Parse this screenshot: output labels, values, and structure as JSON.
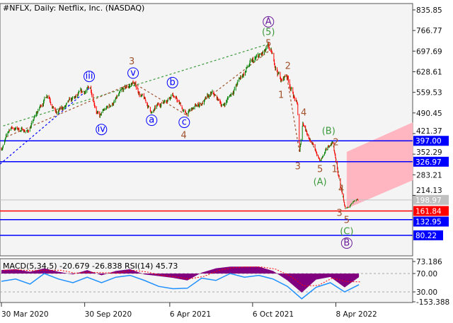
{
  "title": "#NFLX, Daily:  Netflix, Inc. (NASDAQ)",
  "indicator_label": "MACD(5,34,5) -20.679 -26.838 RSI(14) 45.73",
  "colors": {
    "background": "#f4f4f4",
    "bull": "#008000",
    "bear": "#ff0000",
    "level_blue": "#0000ff",
    "level_red": "#ff0000",
    "current_price": "#c0c0c0",
    "channel": "#ffb6c1",
    "rsi": "#1e90ff",
    "macd_hist": "#800080",
    "macd_signal": "#ff0000",
    "wave_blue": "#0000ff",
    "wave_brown": "#a0522d",
    "wave_green": "#3c9a3c",
    "wave_purple": "#6a1b9a"
  },
  "chart_data": {
    "type": "candlestick",
    "symbol": "#NFLX",
    "timeframe": "Daily",
    "price_axis": {
      "ticks": [
        "835.85",
        "766.77",
        "697.69",
        "628.61",
        "559.53",
        "490.45",
        "421.37",
        "352.29",
        "283.21",
        "214.13"
      ],
      "ylim": [
        80.22,
        835.85
      ]
    },
    "time_axis": {
      "ticks": [
        {
          "label": "30 Mar 2020",
          "date": "2020-03-30"
        },
        {
          "label": "30 Sep 2020",
          "date": "2020-09-30"
        },
        {
          "label": "6 Apr 2021",
          "date": "2021-04-06"
        },
        {
          "label": "6 Oct 2021",
          "date": "2021-10-06"
        },
        {
          "label": "8 Apr 2022",
          "date": "2022-04-08"
        }
      ]
    },
    "price_path": [
      {
        "date": "2020-03-30",
        "close": 371
      },
      {
        "date": "2020-04-19",
        "close": 442
      },
      {
        "date": "2020-05-28",
        "close": 430
      },
      {
        "date": "2020-07-11",
        "close": 561
      },
      {
        "date": "2020-07-30",
        "close": 490
      },
      {
        "date": "2020-10-13",
        "close": 573
      },
      {
        "date": "2020-11-01",
        "close": 478
      },
      {
        "date": "2021-01-15",
        "close": 592
      },
      {
        "date": "2021-02-26",
        "close": 490
      },
      {
        "date": "2021-04-11",
        "close": 561
      },
      {
        "date": "2021-05-11",
        "close": 485
      },
      {
        "date": "2021-07-09",
        "close": 549
      },
      {
        "date": "2021-08-02",
        "close": 514
      },
      {
        "date": "2021-09-25",
        "close": 644
      },
      {
        "date": "2021-11-11",
        "close": 698
      },
      {
        "date": "2021-12-09",
        "close": 597
      },
      {
        "date": "2021-12-20",
        "close": 620
      },
      {
        "date": "2022-01-13",
        "close": 514
      },
      {
        "date": "2022-01-18",
        "close": 355
      },
      {
        "date": "2022-01-25",
        "close": 459
      },
      {
        "date": "2022-03-04",
        "close": 329
      },
      {
        "date": "2022-04-01",
        "close": 395
      },
      {
        "date": "2022-04-10",
        "close": 312
      },
      {
        "date": "2022-04-17",
        "close": 248
      },
      {
        "date": "2022-04-29",
        "close": 168
      },
      {
        "date": "2022-05-29",
        "close": 198.97
      }
    ],
    "levels": [
      {
        "price": 397.0,
        "label": "397.00",
        "color": "level_blue"
      },
      {
        "price": 326.97,
        "label": "326.97",
        "color": "level_blue"
      },
      {
        "price": 198.97,
        "label": "198.97",
        "color": "current_price"
      },
      {
        "price": 161.84,
        "label": "161.84",
        "color": "level_red"
      },
      {
        "price": 132.95,
        "label": "132.95",
        "color": "level_blue"
      },
      {
        "price": 80.22,
        "label": "80.22",
        "color": "level_blue"
      }
    ],
    "target_channel": {
      "start": "2022-05-02",
      "end": "2022-09-25",
      "upper": [
        360,
        459
      ],
      "lower": [
        170,
        265
      ]
    },
    "wave_lines": [
      {
        "from": [
          "2020-04-03",
          447
        ],
        "to": [
          "2021-11-11",
          722
        ],
        "color": "wave_green"
      },
      {
        "from": [
          "2020-03-27",
          319
        ],
        "to": [
          "2020-10-10",
          573
        ],
        "color": "wave_blue"
      },
      {
        "from": [
          "2020-04-10",
          410
        ],
        "to": [
          "2021-01-15",
          592
        ],
        "color": "wave_brown"
      },
      {
        "from": [
          "2021-01-15",
          592
        ],
        "to": [
          "2021-05-11",
          485
        ],
        "color": "wave_brown"
      },
      {
        "from": [
          "2021-05-11",
          485
        ],
        "to": [
          "2021-11-11",
          698
        ],
        "color": "wave_brown"
      },
      {
        "from": [
          "2021-12-20",
          620
        ],
        "to": [
          "2022-01-18",
          355
        ],
        "color": "wave_brown"
      },
      {
        "from": [
          "2022-01-25",
          459
        ],
        "to": [
          "2022-03-04",
          329
        ],
        "color": "wave_brown"
      },
      {
        "from": [
          "2022-03-04",
          329
        ],
        "to": [
          "2022-04-01",
          395
        ],
        "color": "wave_green"
      },
      {
        "from": [
          "2022-04-01",
          395
        ],
        "to": [
          "2022-04-29",
          168
        ],
        "color": "wave_green"
      }
    ],
    "wave_labels": [
      {
        "text": "iii",
        "date": "2020-10-10",
        "price": 613,
        "color": "wave_blue",
        "circle": true
      },
      {
        "text": "iv",
        "date": "2020-11-06",
        "price": 435,
        "color": "wave_blue",
        "circle": true
      },
      {
        "text": "v",
        "date": "2021-01-15",
        "price": 630,
        "color": "wave_blue",
        "circle": true
      },
      {
        "text": "3",
        "date": "2021-01-12",
        "price": 662,
        "color": "wave_brown",
        "circle": false
      },
      {
        "text": "a",
        "date": "2021-02-25",
        "price": 466,
        "color": "wave_blue",
        "circle": true
      },
      {
        "text": "b",
        "date": "2021-04-12",
        "price": 592,
        "color": "wave_blue",
        "circle": true
      },
      {
        "text": "c",
        "date": "2021-05-08",
        "price": 459,
        "color": "wave_blue",
        "circle": true
      },
      {
        "text": "4",
        "date": "2021-05-07",
        "price": 414,
        "color": "wave_brown",
        "circle": false
      },
      {
        "text": "5",
        "date": "2021-11-10",
        "price": 722,
        "color": "wave_brown",
        "circle": false
      },
      {
        "text": "(5)",
        "date": "2021-11-10",
        "price": 760,
        "color": "wave_green",
        "circle": false
      },
      {
        "text": "A",
        "date": "2021-11-10",
        "price": 796,
        "color": "wave_purple",
        "circle": true
      },
      {
        "text": "1",
        "date": "2021-12-08",
        "price": 549,
        "color": "wave_brown",
        "circle": false
      },
      {
        "text": "2",
        "date": "2021-12-23",
        "price": 646,
        "color": "wave_brown",
        "circle": false
      },
      {
        "text": "3",
        "date": "2022-01-14",
        "price": 310,
        "color": "wave_brown",
        "circle": false
      },
      {
        "text": "4",
        "date": "2022-01-27",
        "price": 490,
        "color": "wave_brown",
        "circle": false
      },
      {
        "text": "5",
        "date": "2022-03-04",
        "price": 300,
        "color": "wave_brown",
        "circle": false
      },
      {
        "text": "(A)",
        "date": "2022-03-04",
        "price": 258,
        "color": "wave_green",
        "circle": false
      },
      {
        "text": "(B)",
        "date": "2022-03-23",
        "price": 428,
        "color": "wave_green",
        "circle": false
      },
      {
        "text": "2",
        "date": "2022-04-08",
        "price": 395,
        "color": "wave_brown",
        "circle": false
      },
      {
        "text": "1",
        "date": "2022-04-05",
        "price": 300,
        "color": "wave_brown",
        "circle": false
      },
      {
        "text": "4",
        "date": "2022-04-20",
        "price": 234,
        "color": "wave_brown",
        "circle": false
      },
      {
        "text": "3",
        "date": "2022-04-16",
        "price": 154,
        "color": "wave_brown",
        "circle": false
      },
      {
        "text": "5",
        "date": "2022-05-02",
        "price": 130,
        "color": "wave_brown",
        "circle": false
      },
      {
        "text": "(C)",
        "date": "2022-05-02",
        "price": 104,
        "color": "wave_green",
        "circle": false
      },
      {
        "text": "B",
        "date": "2022-05-02",
        "price": 66,
        "color": "wave_purple",
        "circle": true
      }
    ],
    "indicator": {
      "axis_ticks": [
        "73.186",
        "70.00",
        "30.00",
        "-153.388"
      ],
      "rsi_levels": [
        70,
        30
      ],
      "range": [
        "2020-03-30",
        "2022-05-29"
      ],
      "rsi": [
        53,
        58,
        47,
        70,
        58,
        50,
        62,
        50,
        62,
        66,
        55,
        42,
        37,
        38,
        60,
        55,
        70,
        62,
        66,
        58,
        42,
        15,
        40,
        50,
        30,
        45.73
      ],
      "macd": [
        20,
        25,
        10,
        30,
        10,
        -5,
        20,
        -10,
        15,
        25,
        -5,
        -15,
        -25,
        -40,
        5,
        30,
        40,
        40,
        40,
        15,
        -40,
        -110,
        -35,
        -20,
        -80,
        -20.679
      ]
    }
  }
}
